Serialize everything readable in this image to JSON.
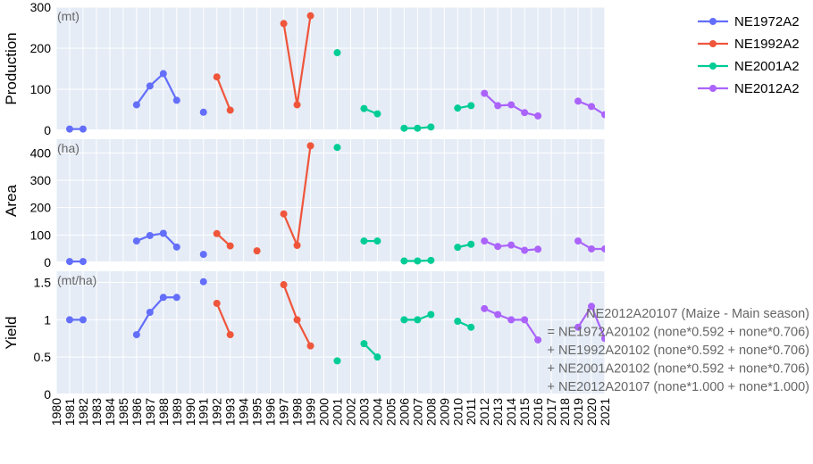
{
  "chart_data": {
    "type": "line",
    "x_years": [
      1980,
      1981,
      1982,
      1983,
      1984,
      1985,
      1986,
      1987,
      1988,
      1989,
      1990,
      1991,
      1992,
      1993,
      1994,
      1995,
      1996,
      1997,
      1998,
      1999,
      2000,
      2001,
      2002,
      2003,
      2004,
      2005,
      2006,
      2007,
      2008,
      2009,
      2010,
      2011,
      2012,
      2013,
      2014,
      2015,
      2016,
      2017,
      2018,
      2019,
      2020,
      2021
    ],
    "panels": [
      {
        "key": "production",
        "ylabel": "Production",
        "unit": "(mt)",
        "ylim": [
          0,
          300
        ],
        "yticks": [
          0,
          100,
          200,
          300
        ],
        "series": [
          {
            "name": "NE1972A2",
            "segments": [
              [
                [
                  1981,
                  3
                ],
                [
                  1982,
                  3
                ]
              ],
              [
                [
                  1986,
                  62
                ],
                [
                  1987,
                  108
                ],
                [
                  1988,
                  138
                ],
                [
                  1989,
                  73
                ]
              ],
              [
                [
                  1991,
                  44
                ]
              ]
            ]
          },
          {
            "name": "NE1992A2",
            "segments": [
              [
                [
                  1992,
                  130
                ],
                [
                  1993,
                  49
                ]
              ],
              [
                [
                  1997,
                  260
                ],
                [
                  1998,
                  62
                ],
                [
                  1999,
                  279
                ]
              ]
            ]
          },
          {
            "name": "NE2001A2",
            "segments": [
              [
                [
                  2001,
                  189
                ]
              ],
              [
                [
                  2003,
                  53
                ],
                [
                  2004,
                  40
                ]
              ],
              [
                [
                  2006,
                  5
                ],
                [
                  2007,
                  5
                ],
                [
                  2008,
                  8
                ]
              ],
              [
                [
                  2010,
                  54
                ],
                [
                  2011,
                  60
                ]
              ]
            ]
          },
          {
            "name": "NE2012A2",
            "segments": [
              [
                [
                  2012,
                  90
                ],
                [
                  2013,
                  60
                ],
                [
                  2014,
                  62
                ],
                [
                  2015,
                  43
                ],
                [
                  2016,
                  35
                ]
              ],
              [
                [
                  2019,
                  71
                ],
                [
                  2020,
                  58
                ],
                [
                  2021,
                  38
                ]
              ]
            ]
          }
        ]
      },
      {
        "key": "area",
        "ylabel": "Area",
        "unit": "(ha)",
        "ylim": [
          0,
          450
        ],
        "yticks": [
          0,
          100,
          200,
          300,
          400
        ],
        "series": [
          {
            "name": "NE1972A2",
            "segments": [
              [
                [
                  1981,
                  3
                ],
                [
                  1982,
                  3
                ]
              ],
              [
                [
                  1986,
                  78
                ],
                [
                  1987,
                  98
                ],
                [
                  1988,
                  106
                ],
                [
                  1989,
                  56
                ]
              ],
              [
                [
                  1991,
                  29
                ]
              ]
            ]
          },
          {
            "name": "NE1992A2",
            "segments": [
              [
                [
                  1992,
                  105
                ],
                [
                  1993,
                  60
                ]
              ],
              [
                [
                  1995,
                  42
                ]
              ],
              [
                [
                  1997,
                  177
                ],
                [
                  1998,
                  62
                ],
                [
                  1999,
                  426
                ]
              ]
            ]
          },
          {
            "name": "NE2001A2",
            "segments": [
              [
                [
                  2001,
                  420
                ]
              ],
              [
                [
                  2003,
                  78
                ],
                [
                  2004,
                  78
                ]
              ],
              [
                [
                  2006,
                  5
                ],
                [
                  2007,
                  5
                ],
                [
                  2008,
                  7
                ]
              ],
              [
                [
                  2010,
                  55
                ],
                [
                  2011,
                  66
                ]
              ]
            ]
          },
          {
            "name": "NE2012A2",
            "segments": [
              [
                [
                  2012,
                  78
                ],
                [
                  2013,
                  58
                ],
                [
                  2014,
                  63
                ],
                [
                  2015,
                  44
                ],
                [
                  2016,
                  48
                ]
              ],
              [
                [
                  2019,
                  78
                ],
                [
                  2020,
                  49
                ],
                [
                  2021,
                  49
                ]
              ]
            ]
          }
        ]
      },
      {
        "key": "yield",
        "ylabel": "Yield",
        "unit": "(mt/ha)",
        "ylim": [
          0,
          1.65
        ],
        "yticks": [
          0,
          0.5,
          1,
          1.5
        ],
        "ytick_labels": [
          "0",
          "0.5",
          "1",
          "1.5"
        ],
        "series": [
          {
            "name": "NE1972A2",
            "segments": [
              [
                [
                  1981,
                  1.0
                ],
                [
                  1982,
                  1.0
                ]
              ],
              [
                [
                  1986,
                  0.8
                ],
                [
                  1987,
                  1.1
                ],
                [
                  1988,
                  1.3
                ],
                [
                  1989,
                  1.3
                ]
              ],
              [
                [
                  1991,
                  1.51
                ]
              ]
            ]
          },
          {
            "name": "NE1992A2",
            "segments": [
              [
                [
                  1992,
                  1.22
                ],
                [
                  1993,
                  0.8
                ]
              ],
              [
                [
                  1997,
                  1.47
                ],
                [
                  1998,
                  1.0
                ],
                [
                  1999,
                  0.65
                ]
              ]
            ]
          },
          {
            "name": "NE2001A2",
            "segments": [
              [
                [
                  2001,
                  0.45
                ]
              ],
              [
                [
                  2003,
                  0.68
                ],
                [
                  2004,
                  0.5
                ]
              ],
              [
                [
                  2006,
                  1.0
                ],
                [
                  2007,
                  1.0
                ],
                [
                  2008,
                  1.07
                ]
              ],
              [
                [
                  2010,
                  0.98
                ],
                [
                  2011,
                  0.9
                ]
              ]
            ]
          },
          {
            "name": "NE2012A2",
            "segments": [
              [
                [
                  2012,
                  1.15
                ],
                [
                  2013,
                  1.07
                ],
                [
                  2014,
                  1.0
                ],
                [
                  2015,
                  1.0
                ],
                [
                  2016,
                  0.73
                ]
              ],
              [
                [
                  2019,
                  0.9
                ],
                [
                  2020,
                  1.18
                ],
                [
                  2021,
                  0.75
                ]
              ]
            ]
          }
        ]
      }
    ],
    "legend": {
      "position": "top-right",
      "entries": [
        {
          "name": "NE1972A2",
          "color": "#636efa"
        },
        {
          "name": "NE1992A2",
          "color": "#ef553b"
        },
        {
          "name": "NE2001A2",
          "color": "#00cc96"
        },
        {
          "name": "NE2012A2",
          "color": "#ab63fa"
        }
      ]
    },
    "annotation": [
      "NE2012A20107 (Maize - Main season)",
      "= NE1972A20102 (none*0.592 + none*0.706)",
      "+ NE1992A20102 (none*0.592 + none*0.706)",
      "+ NE2001A20102 (none*0.592 + none*0.706)",
      "+ NE2012A20107 (none*1.000 + none*1.000)"
    ],
    "grid": true,
    "plot_background": "#e5ecf6"
  }
}
